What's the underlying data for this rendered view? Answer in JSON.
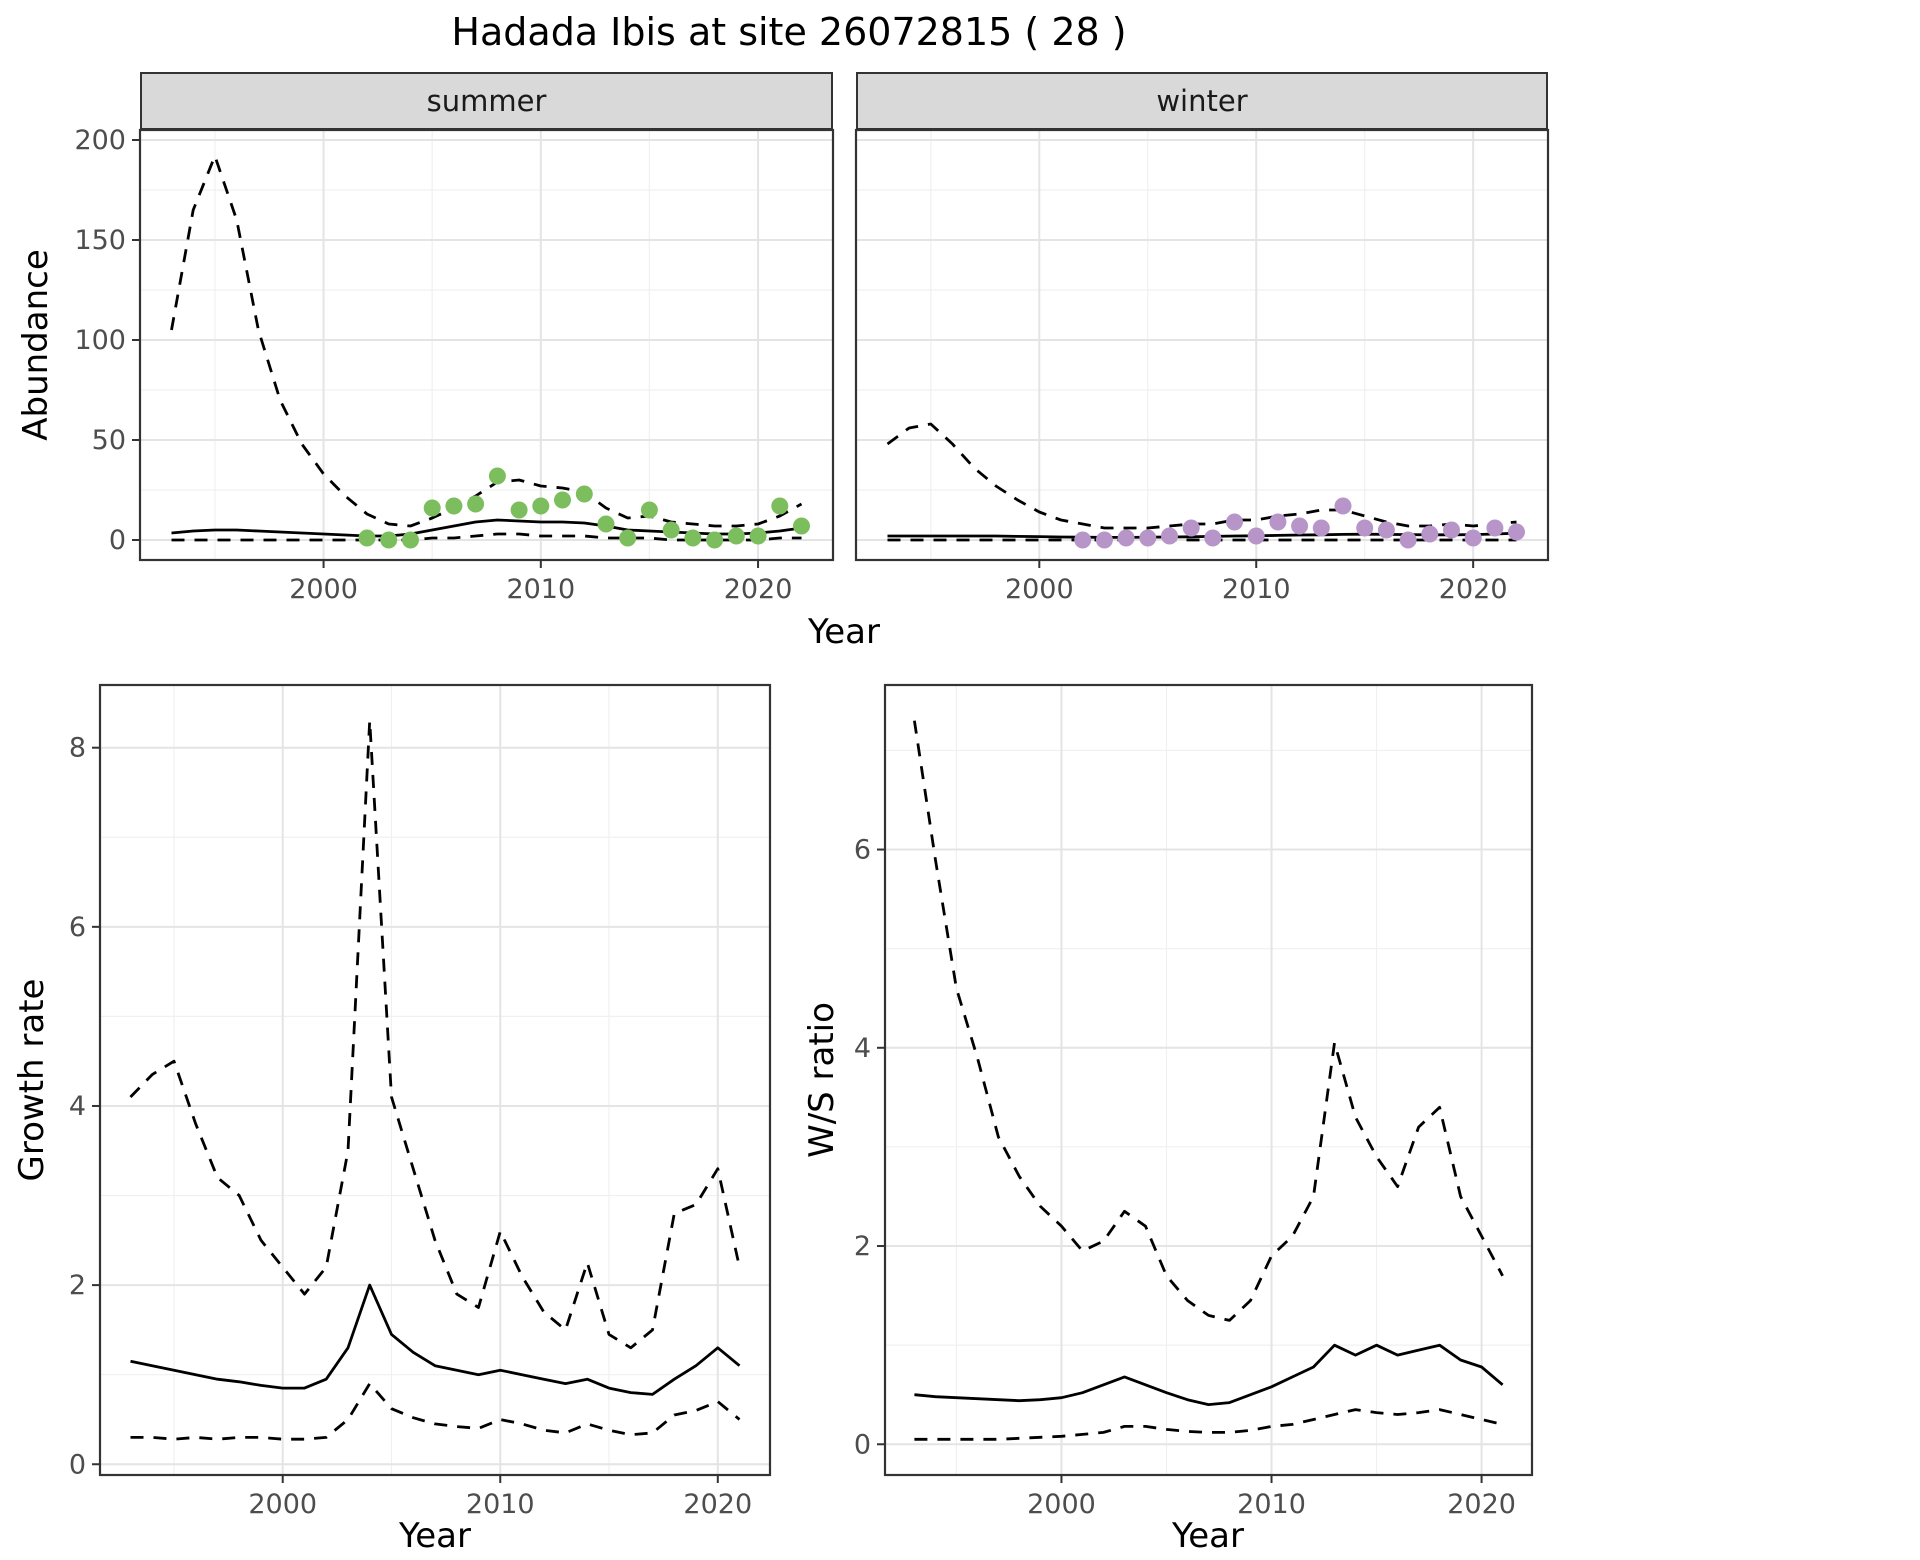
{
  "title": "Hadada Ibis at site 26072815 ( 28 )",
  "facets": {
    "summer": "summer",
    "winter": "winter"
  },
  "axes": {
    "abundance_ylabel": "Abundance",
    "top_xlabel": "Year",
    "growth_ylabel": "Growth rate",
    "growth_xlabel": "Year",
    "ws_ylabel": "W/S ratio",
    "ws_xlabel": "Year"
  },
  "style": {
    "summer_point_color": "#7cbe5e",
    "winter_point_color": "#b795c8",
    "line_color": "#000000",
    "grid_major_color": "#e4e4e4",
    "grid_minor_color": "#f0f0f0",
    "strip_bg": "#d9d9d9",
    "panel_border": "#333333",
    "tick_color": "#333333",
    "tick_label_color": "#4d4d4d"
  },
  "chart_data": [
    {
      "name": "abundance_summer",
      "type": "line",
      "facet": "summer",
      "xlabel": "Year",
      "ylabel": "Abundance",
      "xlim": [
        1991.55,
        2023.45
      ],
      "ylim": [
        -10,
        205
      ],
      "xticks": [
        2000,
        2010,
        2020
      ],
      "yticks": [
        0,
        50,
        100,
        150,
        200
      ],
      "grid": true,
      "series": [
        {
          "name": "upper-ci",
          "style": "dashed",
          "x": [
            1993,
            1994,
            1995,
            1996,
            1997,
            1998,
            1999,
            2000,
            2001,
            2002,
            2003,
            2004,
            2005,
            2006,
            2007,
            2008,
            2009,
            2010,
            2011,
            2012,
            2013,
            2014,
            2015,
            2016,
            2017,
            2018,
            2019,
            2020,
            2021,
            2022
          ],
          "y": [
            105,
            165,
            192,
            160,
            105,
            70,
            48,
            33,
            22,
            13,
            8,
            7,
            11,
            16,
            22,
            29,
            30,
            27,
            26,
            24,
            16,
            11,
            12,
            9,
            8,
            7,
            7,
            8,
            12,
            18
          ]
        },
        {
          "name": "fitted",
          "style": "solid",
          "x": [
            1993,
            1994,
            1995,
            1996,
            1997,
            1998,
            1999,
            2000,
            2001,
            2002,
            2003,
            2004,
            2005,
            2006,
            2007,
            2008,
            2009,
            2010,
            2011,
            2012,
            2013,
            2014,
            2015,
            2016,
            2017,
            2018,
            2019,
            2020,
            2021,
            2022
          ],
          "y": [
            3.5,
            4.5,
            5,
            5,
            4.5,
            4,
            3.5,
            3,
            2.5,
            2,
            2,
            3,
            5,
            7,
            9,
            10,
            9.5,
            9,
            9,
            8.5,
            7,
            5,
            4.5,
            4,
            3.5,
            3,
            3,
            3.5,
            4.5,
            6
          ]
        },
        {
          "name": "lower-ci",
          "style": "dashed",
          "x": [
            1993,
            1994,
            1995,
            1996,
            1997,
            1998,
            1999,
            2000,
            2001,
            2002,
            2003,
            2004,
            2005,
            2006,
            2007,
            2008,
            2009,
            2010,
            2011,
            2012,
            2013,
            2014,
            2015,
            2016,
            2017,
            2018,
            2019,
            2020,
            2021,
            2022
          ],
          "y": [
            0,
            0,
            0,
            0,
            0,
            0,
            0,
            0,
            0,
            0,
            0,
            0,
            1,
            1,
            2,
            3,
            3,
            2,
            2,
            2,
            1,
            1,
            1,
            0,
            0,
            0,
            0,
            0,
            1,
            1
          ]
        },
        {
          "name": "observed-count",
          "style": "points",
          "color": "#7cbe5e",
          "x": [
            2002,
            2003,
            2004,
            2005,
            2006,
            2007,
            2008,
            2009,
            2010,
            2011,
            2012,
            2013,
            2014,
            2015,
            2016,
            2017,
            2018,
            2019,
            2020,
            2021,
            2022
          ],
          "y": [
            1,
            0,
            0,
            16,
            17,
            18,
            32,
            15,
            17,
            20,
            23,
            8,
            1,
            15,
            5,
            1,
            0,
            2,
            2,
            17,
            7
          ]
        }
      ]
    },
    {
      "name": "abundance_winter",
      "type": "line",
      "facet": "winter",
      "xlabel": "Year",
      "ylabel": "Abundance",
      "xlim": [
        1991.55,
        2023.45
      ],
      "ylim": [
        -10,
        205
      ],
      "xticks": [
        2000,
        2010,
        2020
      ],
      "yticks": [
        0,
        50,
        100,
        150,
        200
      ],
      "grid": true,
      "series": [
        {
          "name": "upper-ci",
          "style": "dashed",
          "x": [
            1993,
            1994,
            1995,
            1996,
            1997,
            1998,
            1999,
            2000,
            2001,
            2002,
            2003,
            2004,
            2005,
            2006,
            2007,
            2008,
            2009,
            2010,
            2011,
            2012,
            2013,
            2014,
            2015,
            2016,
            2017,
            2018,
            2019,
            2020,
            2021,
            2022
          ],
          "y": [
            48,
            56,
            58,
            48,
            36,
            27,
            20,
            14,
            10,
            8,
            6,
            6,
            6,
            7,
            8,
            8,
            10,
            10,
            12,
            13,
            15,
            15,
            12,
            9,
            7,
            7,
            8,
            7,
            8,
            9
          ]
        },
        {
          "name": "fitted",
          "style": "solid",
          "x": [
            1993,
            1994,
            1995,
            1996,
            1997,
            1998,
            1999,
            2000,
            2001,
            2002,
            2003,
            2004,
            2005,
            2006,
            2007,
            2008,
            2009,
            2010,
            2011,
            2012,
            2013,
            2014,
            2015,
            2016,
            2017,
            2018,
            2019,
            2020,
            2021,
            2022
          ],
          "y": [
            2,
            2,
            2,
            2,
            2,
            2,
            1.8,
            1.7,
            1.5,
            1.4,
            1.3,
            1.3,
            1.4,
            1.5,
            1.6,
            1.8,
            2,
            2.1,
            2.3,
            2.5,
            2.6,
            2.8,
            2.9,
            2.8,
            2.7,
            2.6,
            2.6,
            2.7,
            3,
            3.4
          ]
        },
        {
          "name": "lower-ci",
          "style": "dashed",
          "x": [
            1993,
            1994,
            1995,
            1996,
            1997,
            1998,
            1999,
            2000,
            2001,
            2002,
            2003,
            2004,
            2005,
            2006,
            2007,
            2008,
            2009,
            2010,
            2011,
            2012,
            2013,
            2014,
            2015,
            2016,
            2017,
            2018,
            2019,
            2020,
            2021,
            2022
          ],
          "y": [
            0,
            0,
            0,
            0,
            0,
            0,
            0,
            0,
            0,
            0,
            0,
            0,
            0,
            0,
            0,
            0,
            0,
            0,
            0,
            0,
            0,
            0,
            0,
            0,
            0,
            0,
            0,
            0,
            0,
            0
          ]
        },
        {
          "name": "observed-count",
          "style": "points",
          "color": "#b795c8",
          "x": [
            2002,
            2003,
            2004,
            2005,
            2006,
            2007,
            2008,
            2009,
            2010,
            2011,
            2012,
            2013,
            2014,
            2015,
            2016,
            2017,
            2018,
            2019,
            2020,
            2021,
            2022
          ],
          "y": [
            0,
            0,
            1,
            1,
            2,
            6,
            1,
            9,
            2,
            9,
            7,
            6,
            17,
            6,
            5,
            0,
            3,
            5,
            1,
            6,
            4
          ]
        }
      ]
    },
    {
      "name": "growth_rate",
      "type": "line",
      "xlabel": "Year",
      "ylabel": "Growth rate",
      "xlim": [
        1991.6,
        2022.4
      ],
      "ylim": [
        -0.12,
        8.7
      ],
      "xticks": [
        2000,
        2010,
        2020
      ],
      "yticks": [
        0,
        2,
        4,
        6,
        8
      ],
      "grid": true,
      "series": [
        {
          "name": "upper-ci",
          "style": "dashed",
          "x": [
            1993,
            1994,
            1995,
            1996,
            1997,
            1998,
            1999,
            2000,
            2001,
            2002,
            2003,
            2004,
            2005,
            2006,
            2007,
            2008,
            2009,
            2010,
            2011,
            2012,
            2013,
            2014,
            2015,
            2016,
            2017,
            2018,
            2019,
            2020,
            2021
          ],
          "y": [
            4.1,
            4.35,
            4.5,
            3.8,
            3.2,
            3.0,
            2.5,
            2.2,
            1.9,
            2.2,
            3.5,
            8.3,
            4.1,
            3.3,
            2.5,
            1.9,
            1.75,
            2.6,
            2.1,
            1.7,
            1.5,
            2.25,
            1.45,
            1.3,
            1.5,
            2.8,
            2.9,
            3.3,
            2.2
          ]
        },
        {
          "name": "fitted",
          "style": "solid",
          "x": [
            1993,
            1994,
            1995,
            1996,
            1997,
            1998,
            1999,
            2000,
            2001,
            2002,
            2003,
            2004,
            2005,
            2006,
            2007,
            2008,
            2009,
            2010,
            2011,
            2012,
            2013,
            2014,
            2015,
            2016,
            2017,
            2018,
            2019,
            2020,
            2021
          ],
          "y": [
            1.15,
            1.1,
            1.05,
            1.0,
            0.95,
            0.92,
            0.88,
            0.85,
            0.85,
            0.95,
            1.3,
            2.0,
            1.45,
            1.25,
            1.1,
            1.05,
            1.0,
            1.05,
            1.0,
            0.95,
            0.9,
            0.95,
            0.85,
            0.8,
            0.78,
            0.95,
            1.1,
            1.3,
            1.1
          ]
        },
        {
          "name": "lower-ci",
          "style": "dashed",
          "x": [
            1993,
            1994,
            1995,
            1996,
            1997,
            1998,
            1999,
            2000,
            2001,
            2002,
            2003,
            2004,
            2005,
            2006,
            2007,
            2008,
            2009,
            2010,
            2011,
            2012,
            2013,
            2014,
            2015,
            2016,
            2017,
            2018,
            2019,
            2020,
            2021
          ],
          "y": [
            0.3,
            0.3,
            0.28,
            0.3,
            0.28,
            0.3,
            0.3,
            0.28,
            0.28,
            0.3,
            0.5,
            0.9,
            0.62,
            0.52,
            0.45,
            0.42,
            0.4,
            0.5,
            0.45,
            0.38,
            0.35,
            0.45,
            0.38,
            0.33,
            0.35,
            0.55,
            0.6,
            0.7,
            0.5
          ]
        }
      ]
    },
    {
      "name": "ws_ratio",
      "type": "line",
      "xlabel": "Year",
      "ylabel": "W/S ratio",
      "xlim": [
        1991.6,
        2022.4
      ],
      "ylim": [
        -0.31,
        7.66
      ],
      "xticks": [
        2000,
        2010,
        2020
      ],
      "yticks": [
        0,
        2,
        4,
        6
      ],
      "grid": true,
      "series": [
        {
          "name": "upper-ci",
          "style": "dashed",
          "x": [
            1993,
            1994,
            1995,
            1996,
            1997,
            1998,
            1999,
            2000,
            2001,
            2002,
            2003,
            2004,
            2005,
            2006,
            2007,
            2008,
            2009,
            2010,
            2011,
            2012,
            2013,
            2014,
            2015,
            2016,
            2017,
            2018,
            2019,
            2020,
            2021
          ],
          "y": [
            7.3,
            5.9,
            4.6,
            3.9,
            3.1,
            2.7,
            2.4,
            2.2,
            1.95,
            2.05,
            2.35,
            2.2,
            1.7,
            1.45,
            1.3,
            1.25,
            1.45,
            1.9,
            2.1,
            2.5,
            4.05,
            3.3,
            2.9,
            2.6,
            3.2,
            3.4,
            2.5,
            2.1,
            1.7
          ]
        },
        {
          "name": "fitted",
          "style": "solid",
          "x": [
            1993,
            1994,
            1995,
            1996,
            1997,
            1998,
            1999,
            2000,
            2001,
            2002,
            2003,
            2004,
            2005,
            2006,
            2007,
            2008,
            2009,
            2010,
            2011,
            2012,
            2013,
            2014,
            2015,
            2016,
            2017,
            2018,
            2019,
            2020,
            2021
          ],
          "y": [
            0.5,
            0.48,
            0.47,
            0.46,
            0.45,
            0.44,
            0.45,
            0.47,
            0.52,
            0.6,
            0.68,
            0.6,
            0.52,
            0.45,
            0.4,
            0.42,
            0.5,
            0.58,
            0.68,
            0.78,
            1.0,
            0.9,
            1.0,
            0.9,
            0.95,
            1.0,
            0.85,
            0.78,
            0.6
          ]
        },
        {
          "name": "lower-ci",
          "style": "dashed",
          "x": [
            1993,
            1994,
            1995,
            1996,
            1997,
            1998,
            1999,
            2000,
            2001,
            2002,
            2003,
            2004,
            2005,
            2006,
            2007,
            2008,
            2009,
            2010,
            2011,
            2012,
            2013,
            2014,
            2015,
            2016,
            2017,
            2018,
            2019,
            2020,
            2021
          ],
          "y": [
            0.05,
            0.05,
            0.05,
            0.05,
            0.05,
            0.06,
            0.07,
            0.08,
            0.1,
            0.12,
            0.18,
            0.18,
            0.15,
            0.13,
            0.12,
            0.12,
            0.14,
            0.18,
            0.2,
            0.25,
            0.3,
            0.35,
            0.32,
            0.3,
            0.32,
            0.35,
            0.3,
            0.25,
            0.2
          ]
        }
      ]
    }
  ]
}
